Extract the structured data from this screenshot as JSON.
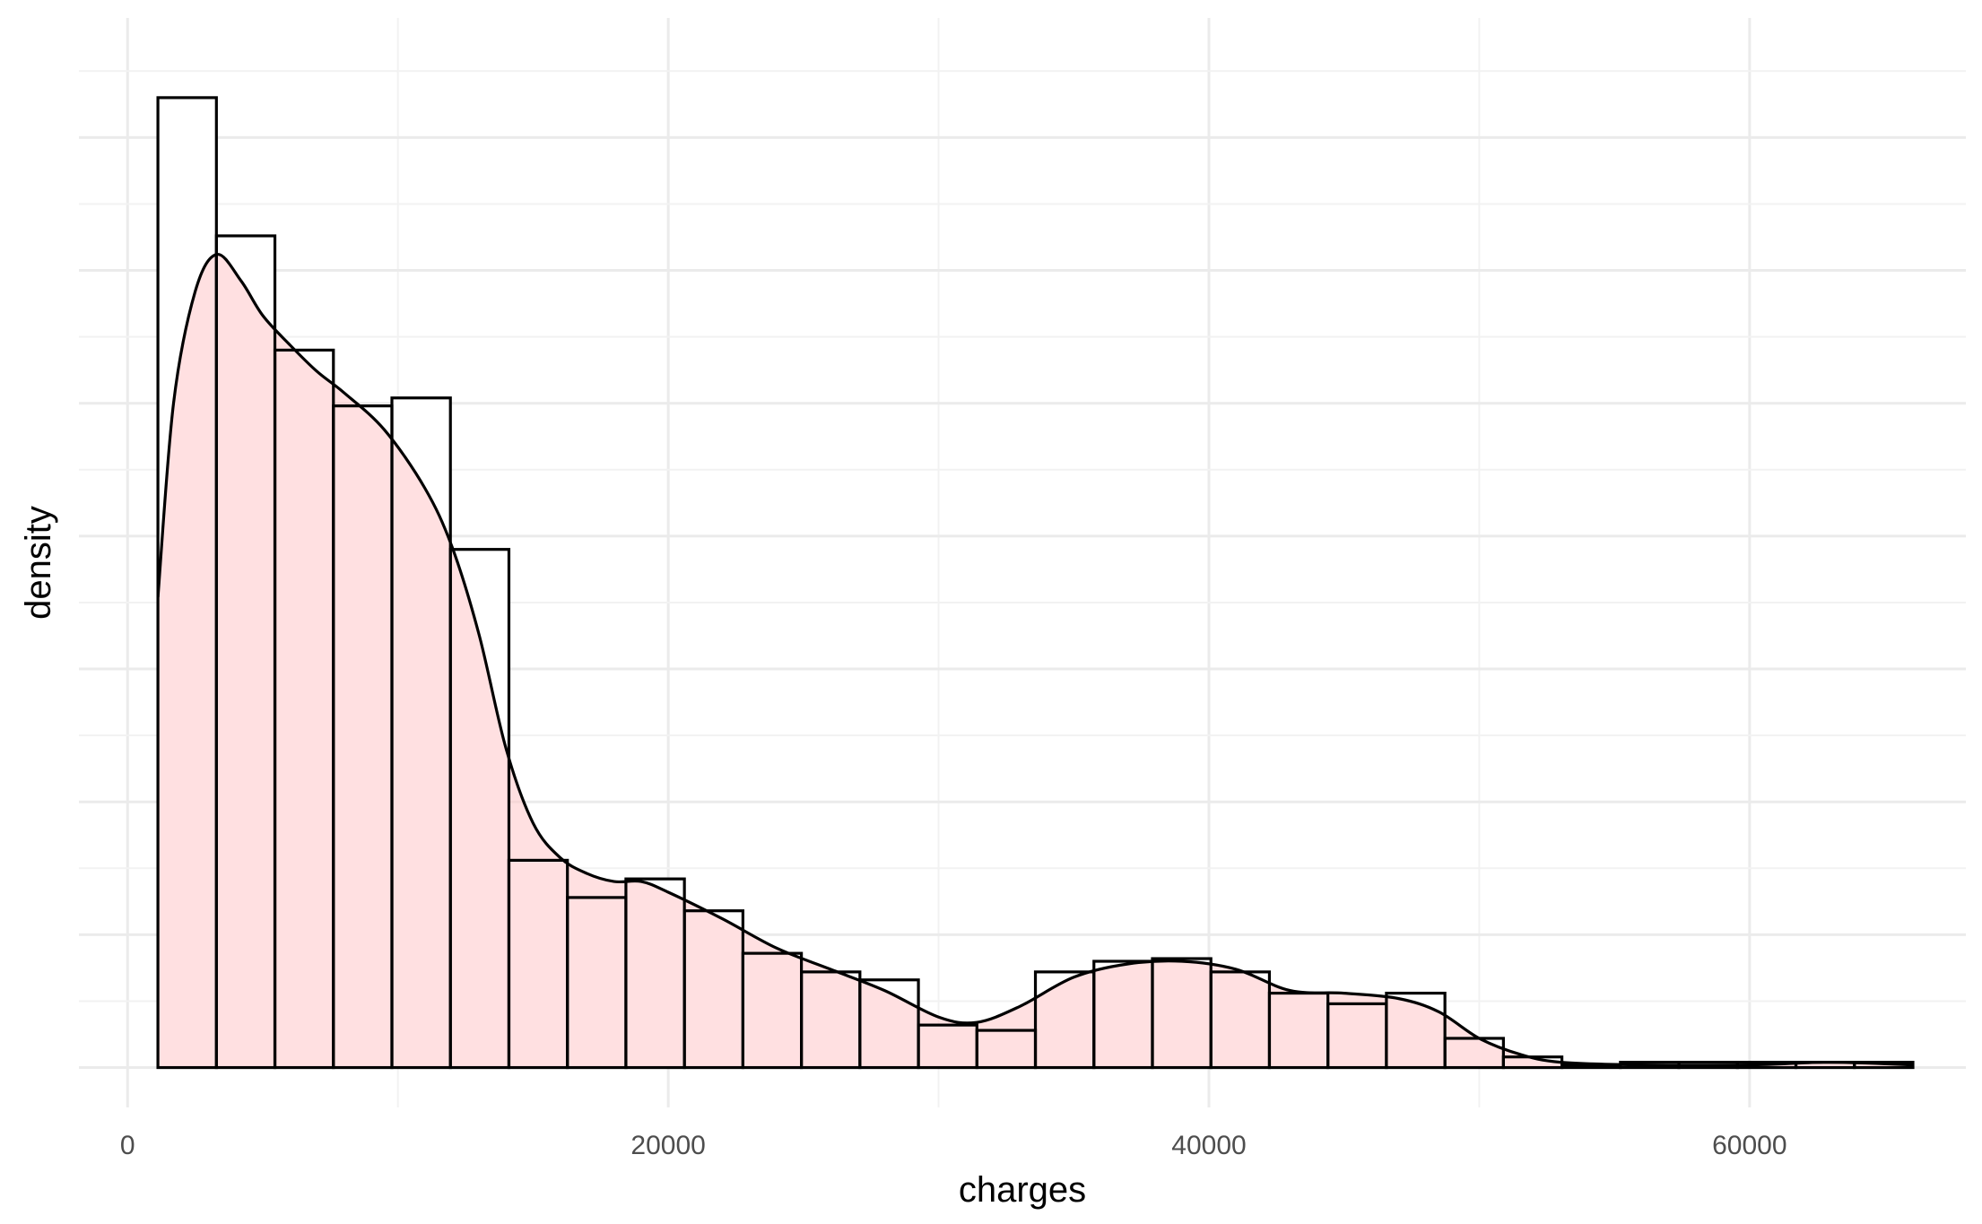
{
  "chart_data": {
    "type": "bar",
    "subtype": "histogram-with-density",
    "xlabel": "charges",
    "ylabel": "density",
    "xlim": [
      -1800,
      68000
    ],
    "ylim": [
      -1.5e-06,
      3.95e-05
    ],
    "x_ticks": [
      0,
      20000,
      40000,
      60000
    ],
    "x_tick_labels": [
      "0",
      "20000",
      "40000",
      "60000"
    ],
    "y_tick_labels_shown": false,
    "grid": true,
    "legend": "none",
    "histogram": {
      "bins": [
        {
          "x0": 1122,
          "x1": 3286,
          "density": 3.65e-05
        },
        {
          "x0": 3286,
          "x1": 5450,
          "density": 3.13e-05
        },
        {
          "x0": 5450,
          "x1": 7614,
          "density": 2.7e-05
        },
        {
          "x0": 7614,
          "x1": 9778,
          "density": 2.49e-05
        },
        {
          "x0": 9778,
          "x1": 11942,
          "density": 2.52e-05
        },
        {
          "x0": 11942,
          "x1": 14106,
          "density": 1.95e-05
        },
        {
          "x0": 14106,
          "x1": 16270,
          "density": 7.8e-06
        },
        {
          "x0": 16270,
          "x1": 18434,
          "density": 6.4e-06
        },
        {
          "x0": 18434,
          "x1": 20598,
          "density": 7.1e-06
        },
        {
          "x0": 20598,
          "x1": 22762,
          "density": 5.9e-06
        },
        {
          "x0": 22762,
          "x1": 24926,
          "density": 4.3e-06
        },
        {
          "x0": 24926,
          "x1": 27090,
          "density": 3.6e-06
        },
        {
          "x0": 27090,
          "x1": 29254,
          "density": 3.3e-06
        },
        {
          "x0": 29254,
          "x1": 31418,
          "density": 1.6e-06
        },
        {
          "x0": 31418,
          "x1": 33582,
          "density": 1.4e-06
        },
        {
          "x0": 33582,
          "x1": 35746,
          "density": 3.6e-06
        },
        {
          "x0": 35746,
          "x1": 37910,
          "density": 4e-06
        },
        {
          "x0": 37910,
          "x1": 40074,
          "density": 4.1e-06
        },
        {
          "x0": 40074,
          "x1": 42238,
          "density": 3.6e-06
        },
        {
          "x0": 42238,
          "x1": 44402,
          "density": 2.8e-06
        },
        {
          "x0": 44402,
          "x1": 46566,
          "density": 2.4e-06
        },
        {
          "x0": 46566,
          "x1": 48730,
          "density": 2.8e-06
        },
        {
          "x0": 48730,
          "x1": 50894,
          "density": 1.1e-06
        },
        {
          "x0": 50894,
          "x1": 53058,
          "density": 4e-07
        },
        {
          "x0": 53058,
          "x1": 55222,
          "density": 1e-07
        },
        {
          "x0": 55222,
          "x1": 57386,
          "density": 2e-07
        },
        {
          "x0": 57386,
          "x1": 59550,
          "density": 2e-07
        },
        {
          "x0": 59550,
          "x1": 61714,
          "density": 2e-07
        },
        {
          "x0": 61714,
          "x1": 63878,
          "density": 2e-07
        },
        {
          "x0": 63878,
          "x1": 66042,
          "density": 2e-07
        }
      ]
    },
    "density_curve": {
      "x": [
        1122,
        1700,
        2500,
        3300,
        4200,
        5000,
        6000,
        7000,
        8000,
        9500,
        11000,
        12000,
        13000,
        14000,
        15000,
        16000,
        17000,
        18000,
        19000,
        20000,
        22000,
        24000,
        26000,
        28000,
        30000,
        31400,
        33000,
        35000,
        37000,
        39000,
        41000,
        43000,
        45000,
        47000,
        48500,
        50000,
        51500,
        53000,
        56000,
        60000,
        63000,
        66042
      ],
      "y": [
        1.77e-05,
        2.5e-05,
        2.92e-05,
        3.06e-05,
        2.96e-05,
        2.83e-05,
        2.72e-05,
        2.62e-05,
        2.54e-05,
        2.4e-05,
        2.18e-05,
        1.96e-05,
        1.63e-05,
        1.2e-05,
        9.2e-06,
        7.9e-06,
        7.3e-06,
        7e-06,
        7e-06,
        6.6e-06,
        5.6e-06,
        4.5e-06,
        3.7e-06,
        2.9e-06,
        1.9e-06,
        1.7e-06,
        2.3e-06,
        3.4e-06,
        3.9e-06,
        4e-06,
        3.7e-06,
        2.9e-06,
        2.8e-06,
        2.6e-06,
        2.1e-06,
        1.1e-06,
        5e-07,
        2e-07,
        1e-07,
        1e-07,
        2e-07,
        1e-07
      ]
    },
    "colors": {
      "bar_fill": "#ffffff",
      "bar_outline": "#000000",
      "density_fill": "#ffc6c8",
      "density_line": "#000000",
      "grid": "#ebebeb",
      "tick_text": "#4d4d4d"
    }
  }
}
